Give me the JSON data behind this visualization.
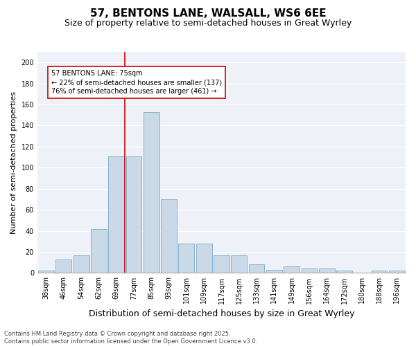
{
  "title": "57, BENTONS LANE, WALSALL, WS6 6EE",
  "subtitle": "Size of property relative to semi-detached houses in Great Wyrley",
  "xlabel": "Distribution of semi-detached houses by size in Great Wyrley",
  "ylabel": "Number of semi-detached properties",
  "bar_labels": [
    "38sqm",
    "46sqm",
    "54sqm",
    "62sqm",
    "69sqm",
    "77sqm",
    "85sqm",
    "93sqm",
    "101sqm",
    "109sqm",
    "117sqm",
    "125sqm",
    "133sqm",
    "141sqm",
    "149sqm",
    "156sqm",
    "164sqm",
    "172sqm",
    "180sqm",
    "188sqm",
    "196sqm"
  ],
  "bar_values": [
    2,
    13,
    17,
    42,
    111,
    111,
    153,
    70,
    28,
    28,
    17,
    17,
    8,
    3,
    6,
    4,
    4,
    2,
    0,
    2,
    2
  ],
  "bar_color": "#c9d9e8",
  "bar_edgecolor": "#7aaac8",
  "vline_color": "#cc0000",
  "annotation_box_edgecolor": "#cc0000",
  "vline_pos": 4.5,
  "ylim": [
    0,
    210
  ],
  "yticks": [
    0,
    20,
    40,
    60,
    80,
    100,
    120,
    140,
    160,
    180,
    200
  ],
  "background_color": "#eef2f8",
  "grid_color": "#ffffff",
  "fig_background": "#ffffff",
  "footnote": "Contains HM Land Registry data © Crown copyright and database right 2025.\nContains public sector information licensed under the Open Government Licence v3.0.",
  "title_fontsize": 11,
  "subtitle_fontsize": 9,
  "xlabel_fontsize": 9,
  "ylabel_fontsize": 8,
  "tick_fontsize": 7,
  "annot_fontsize": 7,
  "footnote_fontsize": 6
}
